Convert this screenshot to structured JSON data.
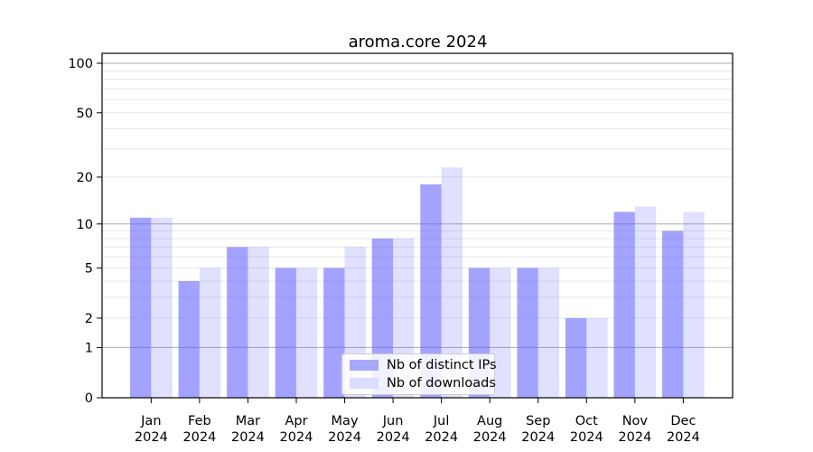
{
  "chart_data": {
    "type": "bar",
    "title": "aroma.core 2024",
    "categories": [
      "Jan",
      "Feb",
      "Mar",
      "Apr",
      "May",
      "Jun",
      "Jul",
      "Aug",
      "Sep",
      "Oct",
      "Nov",
      "Dec"
    ],
    "year": "2024",
    "series": [
      {
        "name": "Nb of distinct IPs",
        "color": "#6666ff",
        "alpha": 0.6,
        "values": [
          11,
          4,
          7,
          5,
          5,
          8,
          18,
          5,
          5,
          2,
          12,
          9
        ]
      },
      {
        "name": "Nb of downloads",
        "color": "#6666ff",
        "alpha": 0.2,
        "values": [
          11,
          5,
          7,
          5,
          7,
          8,
          23,
          5,
          5,
          2,
          13,
          12
        ]
      }
    ],
    "y_axis": {
      "scale": "log1p",
      "tick_labels": [
        "0",
        "1",
        "2",
        "5",
        "10",
        "20",
        "50",
        "100"
      ],
      "ticks": [
        0,
        1,
        2,
        5,
        10,
        20,
        50,
        100
      ],
      "major_gridlines": [
        1,
        10,
        100
      ],
      "minor_gridlines": [
        2,
        3,
        4,
        5,
        6,
        7,
        8,
        9,
        20,
        30,
        40,
        50,
        60,
        70,
        80,
        90
      ],
      "ylim": [
        0,
        115
      ],
      "grid": "on"
    },
    "legend": {
      "position": "bottom-center",
      "items": [
        "Nb of distinct IPs",
        "Nb of downloads"
      ]
    },
    "colors": {
      "bar_dark_rendered": "#a8a8f8",
      "bar_light_rendered": "#dcdcfc",
      "major_grid": "#ababab",
      "minor_grid": "#e8e8e8",
      "axis": "#000000"
    }
  }
}
